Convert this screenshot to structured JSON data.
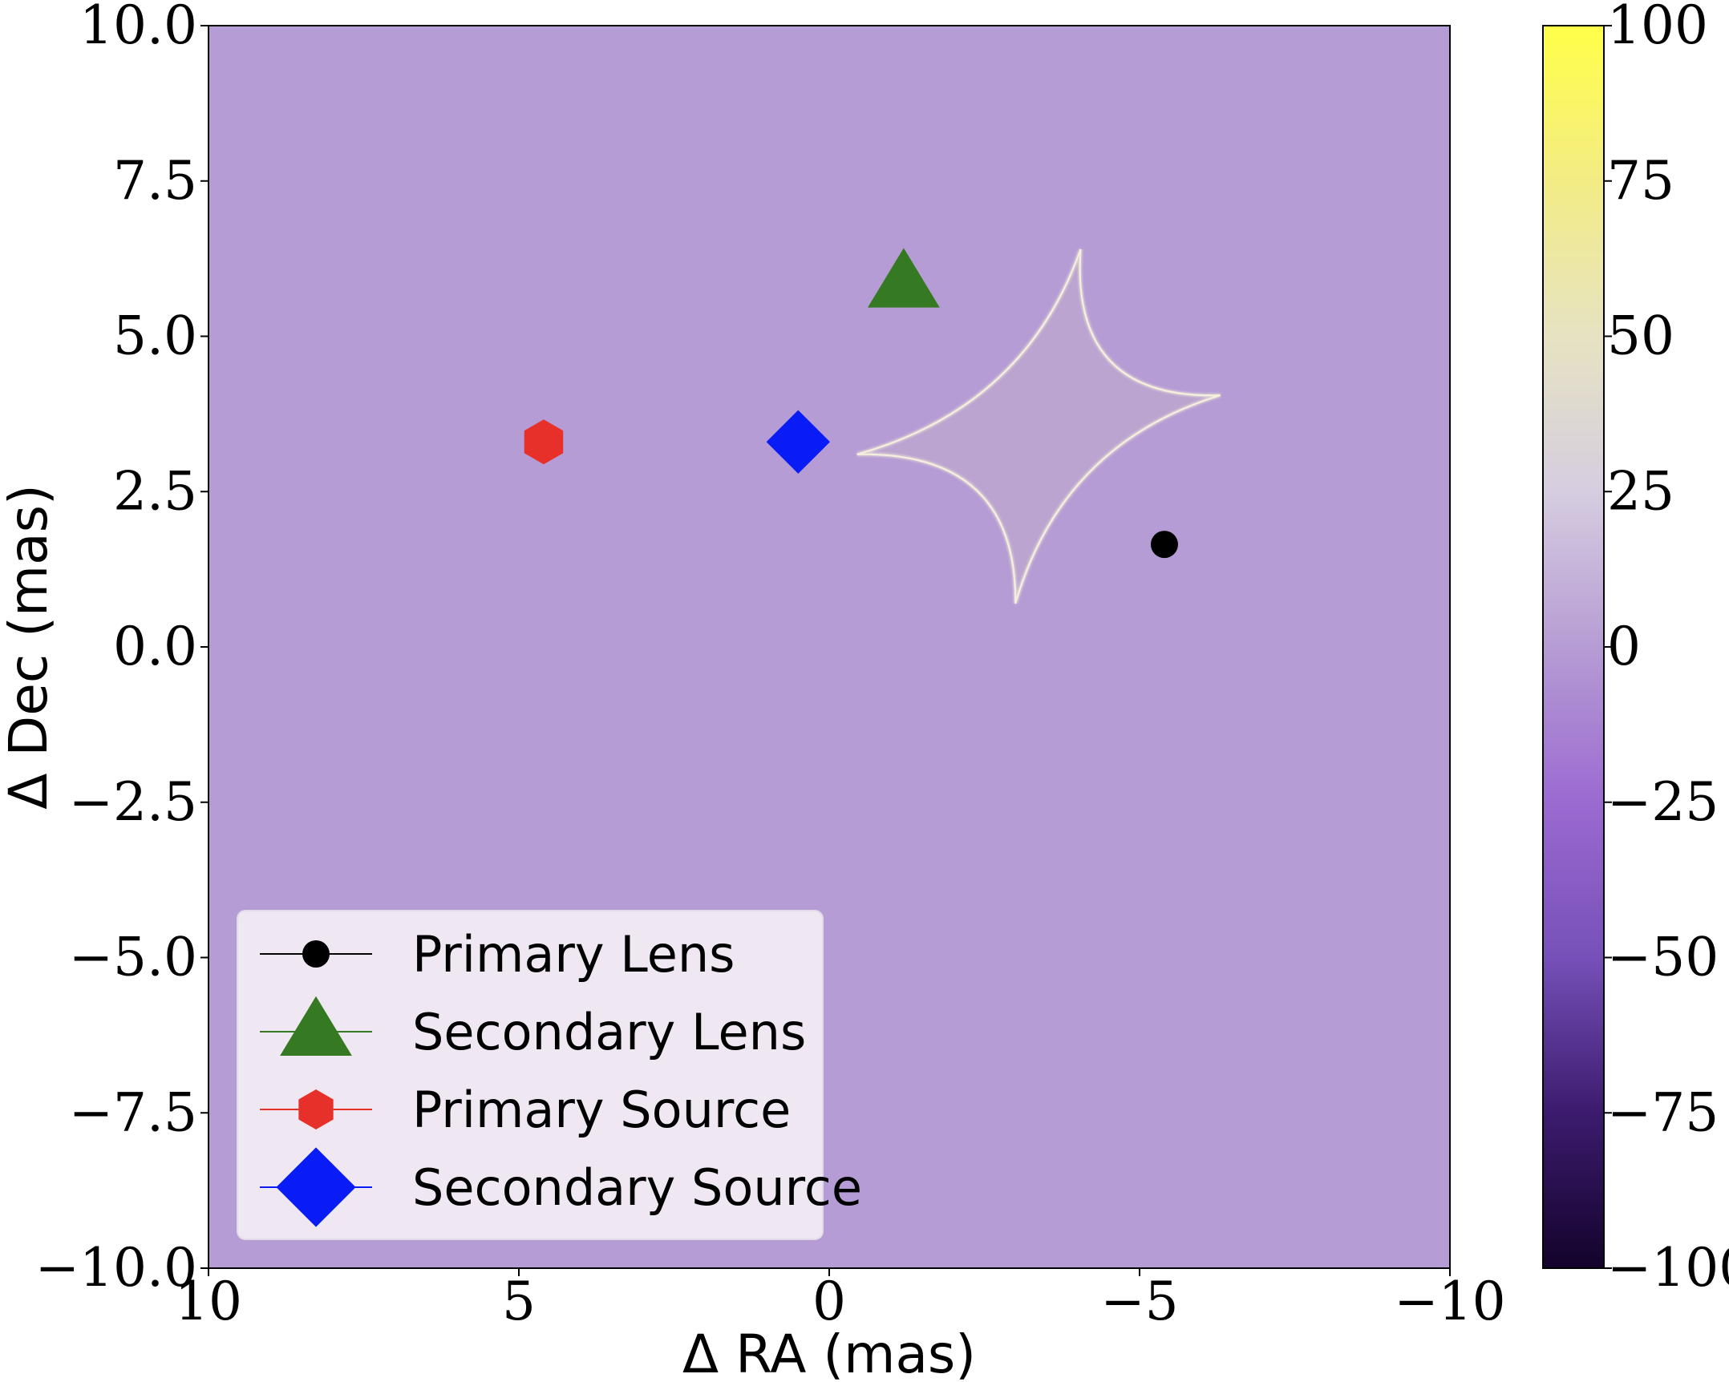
{
  "chart_data": {
    "type": "heatmap",
    "xlabel": "Δ RA (mas)",
    "ylabel": "Δ Dec (mas)",
    "xlim": [
      10,
      -10
    ],
    "ylim": [
      -10,
      10
    ],
    "x_ticks": [
      10,
      5,
      0,
      -5,
      -10
    ],
    "x_tick_labels": [
      "10",
      "5",
      "0",
      "−5",
      "−10"
    ],
    "y_ticks": [
      10,
      7.5,
      5,
      2.5,
      0,
      -2.5,
      -5,
      -7.5,
      -10
    ],
    "y_tick_labels": [
      "10.0",
      "7.5",
      "5.0",
      "2.5",
      "0.0",
      "−2.5",
      "−5.0",
      "−7.5",
      "−10.0"
    ],
    "background_color": "#b69cd4",
    "caustic": {
      "color": "#f4f0dc",
      "cusps": [
        [
          -4.05,
          6.4
        ],
        [
          -6.3,
          4.05
        ],
        [
          -3.0,
          0.7
        ],
        [
          -0.45,
          3.1
        ]
      ]
    },
    "colorbar": {
      "range": [
        -100,
        100
      ],
      "ticks": [
        100,
        75,
        50,
        25,
        0,
        -25,
        -50,
        -75,
        -100
      ],
      "tick_labels": [
        "100",
        "75",
        "50",
        "25",
        "0",
        "−25",
        "−50",
        "−75",
        "−100"
      ],
      "colors": [
        "#13032b",
        "#3c1b6e",
        "#7650b8",
        "#9b6ad1",
        "#b69cd4",
        "#d6cde0",
        "#e6e3c2",
        "#f3ec85",
        "#ffff48"
      ]
    },
    "series": [
      {
        "name": "Primary Lens",
        "marker": "circle",
        "color": "#000000",
        "x": -5.4,
        "y": 1.65
      },
      {
        "name": "Secondary Lens",
        "marker": "triangle",
        "color": "#357a22",
        "x": -1.2,
        "y": 5.85
      },
      {
        "name": "Primary Source",
        "marker": "hexagon",
        "color": "#e8302b",
        "x": 4.6,
        "y": 3.3
      },
      {
        "name": "Secondary Source",
        "marker": "diamond",
        "color": "#0a1cf5",
        "x": 0.5,
        "y": 3.3
      }
    ],
    "legend": {
      "position": "bottom-left"
    }
  }
}
